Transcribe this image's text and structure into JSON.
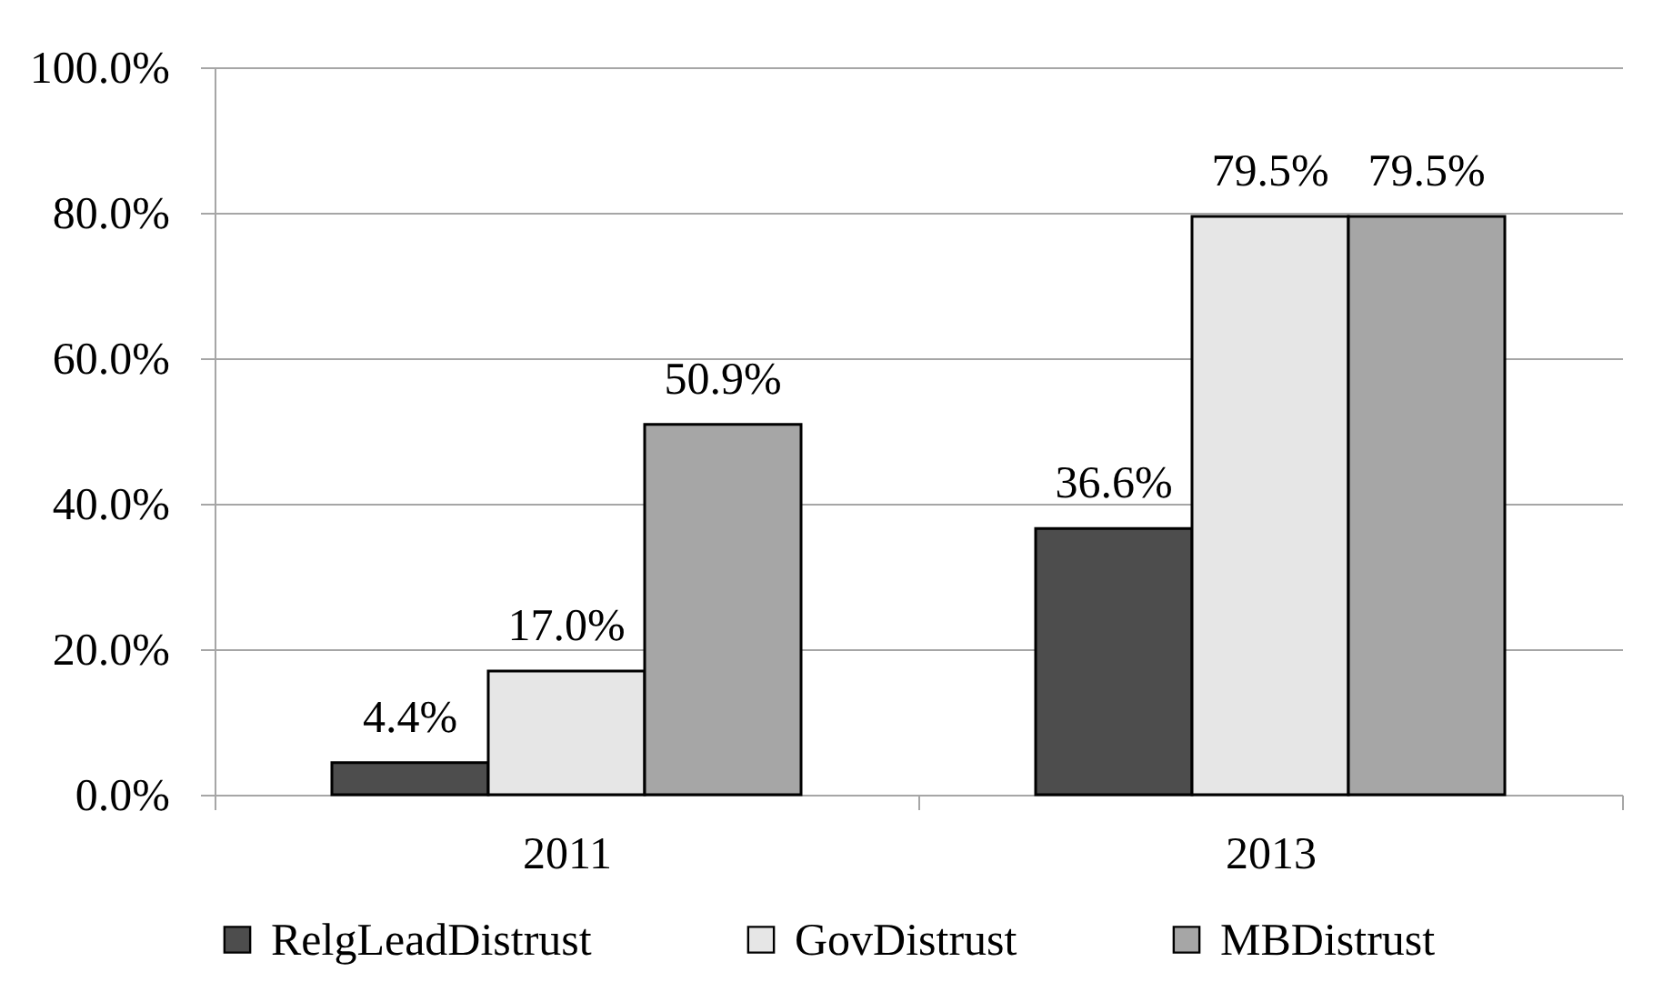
{
  "chart_data": {
    "type": "bar",
    "categories": [
      "2011",
      "2013"
    ],
    "series": [
      {
        "name": "RelgLeadDistrust",
        "color": "#4d4d4d",
        "values": [
          4.4,
          36.6
        ],
        "value_labels": [
          "4.4%",
          "36.6%"
        ]
      },
      {
        "name": "GovDistrust",
        "color": "#e6e6e6",
        "values": [
          17.0,
          79.5
        ],
        "value_labels": [
          "17.0%",
          "79.5%"
        ]
      },
      {
        "name": "MBDistrust",
        "color": "#a6a6a6",
        "values": [
          50.9,
          79.5
        ],
        "value_labels": [
          "50.9%",
          "79.5%"
        ]
      }
    ],
    "ylim": [
      0,
      100
    ],
    "yticks": [
      {
        "value": 0,
        "label": "0.0%"
      },
      {
        "value": 20,
        "label": "20.0%"
      },
      {
        "value": 40,
        "label": "40.0%"
      },
      {
        "value": 60,
        "label": "60.0%"
      },
      {
        "value": 80,
        "label": "80.0%"
      },
      {
        "value": 100,
        "label": "100.0%"
      }
    ],
    "grid": "y",
    "legend": "bottom"
  }
}
